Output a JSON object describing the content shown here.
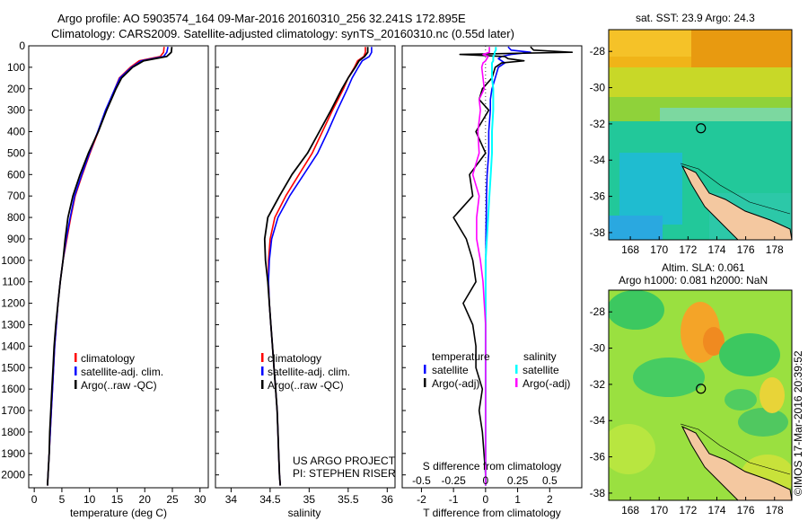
{
  "header": {
    "line1": "Argo profile: AO 5903574_164 09-Mar-2016 20160310_256 32.241S 172.895E",
    "line2": "Climatology: CARS2009. Satellite-adjusted climatology: synTS_20160310.nc (0.55d later)"
  },
  "colors": {
    "climatology": "#ff0000",
    "satellite": "#0000ff",
    "argo": "#000000",
    "argo_salinity_diff": "#ff00ff",
    "satellite_salinity_diff": "#00ffff",
    "land": "#f4c8a0"
  },
  "chart_data": [
    {
      "type": "line",
      "panel": "temperature",
      "xlabel": "temperature (deg C)",
      "xlim": [
        -1,
        31.5
      ],
      "xticks": [
        0,
        5,
        10,
        15,
        20,
        25,
        30
      ],
      "ylim": [
        2060,
        0
      ],
      "yticks": [
        0,
        100,
        200,
        300,
        400,
        500,
        600,
        700,
        800,
        900,
        1000,
        1100,
        1200,
        1300,
        1400,
        1500,
        1600,
        1700,
        1800,
        1900,
        2000
      ],
      "depth": [
        5,
        30,
        50,
        70,
        100,
        150,
        200,
        300,
        400,
        500,
        600,
        700,
        800,
        900,
        1000,
        1100,
        1200,
        1300,
        1400,
        1500,
        1600,
        1700,
        1800,
        1900,
        2000,
        2050
      ],
      "series": [
        {
          "name": "climatology",
          "color": "#ff0000",
          "values": [
            23.5,
            23.4,
            22.8,
            19.0,
            17.4,
            15.4,
            14.6,
            13.0,
            11.6,
            10.1,
            8.7,
            7.4,
            6.6,
            5.9,
            5.2,
            4.7,
            4.3,
            4.0,
            3.7,
            3.5,
            3.3,
            3.1,
            2.9,
            2.7,
            2.5,
            2.4
          ]
        },
        {
          "name": "satellite-adj. clim.",
          "color": "#0000ff",
          "values": [
            24.2,
            24.0,
            23.4,
            19.4,
            17.6,
            15.5,
            14.6,
            12.9,
            11.5,
            10.0,
            8.6,
            7.3,
            6.5,
            5.8,
            5.2,
            4.7,
            4.3,
            4.0,
            3.7,
            3.5,
            3.3,
            3.1,
            2.9,
            2.7,
            2.5,
            2.4
          ]
        },
        {
          "name": "Argo(..raw -QC)",
          "color": "#000000",
          "values": [
            24.9,
            24.8,
            24.0,
            19.8,
            17.8,
            15.8,
            14.8,
            13.1,
            11.6,
            9.8,
            8.3,
            7.0,
            6.1,
            5.6,
            5.2,
            4.7,
            4.3,
            3.9,
            3.6,
            3.4,
            3.2,
            3.0,
            2.8,
            2.7,
            2.5,
            2.4
          ]
        }
      ],
      "legend": [
        "climatology",
        "satellite-adj. clim.",
        "Argo(..raw -QC)"
      ]
    },
    {
      "type": "line",
      "panel": "salinity",
      "xlabel": "salinity",
      "xlim": [
        33.8,
        36.1
      ],
      "xticks": [
        34,
        34.5,
        35,
        35.5,
        36
      ],
      "ylim": [
        2060,
        0
      ],
      "depth": [
        5,
        30,
        50,
        70,
        100,
        150,
        200,
        300,
        400,
        500,
        600,
        700,
        800,
        900,
        1000,
        1100,
        1200,
        1300,
        1400,
        1500,
        1600,
        1700,
        1800,
        1900,
        2000,
        2050
      ],
      "series": [
        {
          "name": "climatology",
          "color": "#ff0000",
          "values": [
            35.72,
            35.72,
            35.7,
            35.62,
            35.58,
            35.5,
            35.44,
            35.3,
            35.17,
            35.04,
            34.87,
            34.7,
            34.56,
            34.5,
            34.48,
            34.48,
            34.49,
            34.51,
            34.53,
            34.55,
            34.57,
            34.59,
            34.6,
            34.61,
            34.62,
            34.63
          ]
        },
        {
          "name": "satellite-adj. clim.",
          "color": "#0000ff",
          "values": [
            35.8,
            35.8,
            35.77,
            35.68,
            35.63,
            35.55,
            35.49,
            35.36,
            35.24,
            35.11,
            34.93,
            34.75,
            34.6,
            34.52,
            34.49,
            34.48,
            34.49,
            34.51,
            34.53,
            34.55,
            34.57,
            34.59,
            34.6,
            34.61,
            34.62,
            34.63
          ]
        },
        {
          "name": "Argo(..raw -QC)",
          "color": "#000000",
          "values": [
            35.75,
            35.75,
            35.71,
            35.64,
            35.59,
            35.5,
            35.42,
            35.28,
            35.13,
            34.98,
            34.78,
            34.62,
            34.47,
            34.43,
            34.44,
            34.47,
            34.49,
            34.51,
            34.53,
            34.55,
            34.57,
            34.59,
            34.6,
            34.61,
            34.62,
            34.63
          ]
        }
      ],
      "legend": [
        "climatology",
        "satellite-adj. clim.",
        "Argo(..raw -QC)"
      ],
      "credit": [
        "US ARGO PROJECT",
        "PI: STEPHEN RISER"
      ]
    },
    {
      "type": "line",
      "panel": "difference",
      "xlabel": "T difference from climatology",
      "xlabel_top": "S difference from climatology",
      "xlim": [
        -2.6,
        3.0
      ],
      "xticks": [
        -2,
        -1,
        0,
        1,
        2
      ],
      "xticks_s": [
        "-0.5",
        "-0.25",
        "0",
        "0.25",
        "0.5"
      ],
      "ylim": [
        2060,
        0
      ],
      "depth": [
        5,
        20,
        30,
        40,
        50,
        60,
        70,
        80,
        100,
        150,
        200,
        250,
        300,
        400,
        500,
        600,
        700,
        800,
        900,
        1000,
        1100,
        1200,
        1300,
        1400,
        1500,
        1600,
        1700,
        1800,
        1900,
        2000,
        2050
      ],
      "series": [
        {
          "name": "temperature satellite",
          "color": "#0000ff",
          "values": [
            0.7,
            0.8,
            1.4,
            0.8,
            0.5,
            0.4,
            0.5,
            0.6,
            0.4,
            0.3,
            0.2,
            0.15,
            0.15,
            0.1,
            0.1,
            0.05,
            0.03,
            0.02,
            0.01,
            0.01,
            0,
            0,
            0,
            0,
            0,
            0,
            0,
            0,
            0,
            0,
            0
          ]
        },
        {
          "name": "temperature Argo(-adj)",
          "color": "#000000",
          "values": [
            1.4,
            1.5,
            2.7,
            -0.8,
            0.6,
            0.7,
            1.2,
            0.5,
            0.3,
            0.2,
            -0.1,
            -0.2,
            0.1,
            -0.3,
            0.0,
            -0.5,
            -0.4,
            -1.0,
            -0.6,
            -0.4,
            -0.3,
            -0.7,
            -0.4,
            -0.3,
            -0.3,
            -0.1,
            -0.2,
            -0.1,
            -0.05,
            0,
            0
          ]
        },
        {
          "name": "salinity satellite",
          "color": "#00ffff",
          "values": [
            0.08,
            0.08,
            0.07,
            0.07,
            0.06,
            0.06,
            0.06,
            0.05,
            0.05,
            0.05,
            0.06,
            0.06,
            0.06,
            0.05,
            0.05,
            0.04,
            0.03,
            0.02,
            0.01,
            0,
            0,
            0,
            0,
            0,
            0,
            0,
            0,
            0,
            0,
            0,
            0
          ]
        },
        {
          "name": "salinity Argo(-adj)",
          "color": "#ff00ff",
          "values": [
            0.03,
            0.03,
            0.03,
            -0.02,
            0.02,
            0.01,
            0.0,
            -0.02,
            -0.03,
            -0.02,
            -0.01,
            -0.05,
            -0.04,
            -0.06,
            -0.05,
            -0.1,
            -0.05,
            -0.07,
            -0.07,
            -0.04,
            -0.02,
            -0.01,
            0,
            0,
            0,
            0,
            0,
            0,
            0,
            0,
            0
          ]
        }
      ],
      "legend": {
        "temperature_title": "temperature",
        "salinity_title": "salinity",
        "t_satellite": "satellite",
        "t_argo": "Argo(-adj)",
        "s_satellite": "satellite",
        "s_argo": "Argo(-adj)"
      }
    }
  ],
  "maps": {
    "sst_title": "sat. SST: 23.9 Argo: 24.3",
    "sla_title_1": "Altim. SLA: 0.061",
    "sla_title_2": "Argo h1000: 0.081 h2000: NaN",
    "lat_ticks": [
      "-28",
      "-30",
      "-32",
      "-34",
      "-36",
      "-38"
    ],
    "lon_ticks": [
      "168",
      "170",
      "172",
      "174",
      "176",
      "178"
    ],
    "argo_position": {
      "lon": 172.895,
      "lat": -32.241
    }
  },
  "footer": {
    "stamp": "©IMOS 17-Mar-2016 20:39:52"
  }
}
